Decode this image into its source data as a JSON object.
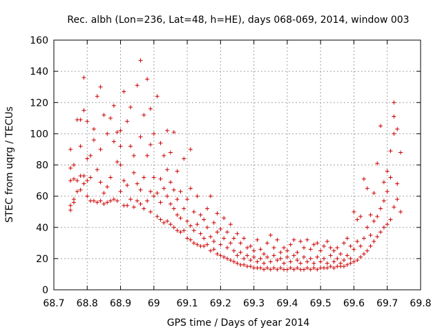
{
  "chart_data": {
    "type": "scatter",
    "title": "Rec. albh (Lon=236, Lat=48, h=HE), days 068-069, 2014, window 003",
    "xlabel": "GPS time / Days of year 2014",
    "ylabel": "STEC from uqrg / TECUs",
    "xlim": [
      68.7,
      69.8
    ],
    "ylim": [
      0,
      160
    ],
    "xticks": [
      "68.7",
      "68.8",
      "68.9",
      "69",
      "69.1",
      "69.2",
      "69.3",
      "69.4",
      "69.5",
      "69.6",
      "69.7",
      "69.8"
    ],
    "yticks": [
      "0",
      "20",
      "40",
      "60",
      "80",
      "100",
      "120",
      "140",
      "160"
    ],
    "grid": true,
    "marker": "+",
    "color": "#cc0000",
    "series": [
      {
        "points": [
          [
            68.75,
            51
          ],
          [
            68.75,
            54
          ],
          [
            68.75,
            70
          ],
          [
            68.75,
            78
          ],
          [
            68.75,
            90
          ],
          [
            68.76,
            56
          ],
          [
            68.76,
            58
          ],
          [
            68.76,
            71
          ],
          [
            68.76,
            80
          ],
          [
            68.77,
            63
          ],
          [
            68.77,
            70
          ],
          [
            68.77,
            109
          ],
          [
            68.78,
            64
          ],
          [
            68.78,
            73
          ],
          [
            68.78,
            92
          ],
          [
            68.78,
            109
          ],
          [
            68.79,
            68
          ],
          [
            68.79,
            73
          ],
          [
            68.79,
            115
          ],
          [
            68.79,
            136
          ],
          [
            68.8,
            60
          ],
          [
            68.8,
            70
          ],
          [
            68.8,
            84
          ],
          [
            68.8,
            108
          ],
          [
            68.81,
            57
          ],
          [
            68.81,
            72
          ],
          [
            68.81,
            86
          ],
          [
            68.82,
            57
          ],
          [
            68.82,
            96
          ],
          [
            68.82,
            103
          ],
          [
            68.83,
            56
          ],
          [
            68.83,
            77
          ],
          [
            68.83,
            124
          ],
          [
            68.84,
            57
          ],
          [
            68.84,
            69
          ],
          [
            68.84,
            90
          ],
          [
            68.84,
            130
          ],
          [
            68.85,
            55
          ],
          [
            68.85,
            62
          ],
          [
            68.85,
            112
          ],
          [
            68.86,
            56
          ],
          [
            68.86,
            66
          ],
          [
            68.86,
            100
          ],
          [
            68.87,
            57
          ],
          [
            68.87,
            72
          ],
          [
            68.87,
            110
          ],
          [
            68.88,
            58
          ],
          [
            68.88,
            95
          ],
          [
            68.88,
            118
          ],
          [
            68.89,
            57
          ],
          [
            68.89,
            82
          ],
          [
            68.89,
            101
          ],
          [
            68.9,
            63
          ],
          [
            68.9,
            80
          ],
          [
            68.9,
            92
          ],
          [
            68.9,
            102
          ],
          [
            68.91,
            54
          ],
          [
            68.91,
            70
          ],
          [
            68.91,
            127
          ],
          [
            68.92,
            54
          ],
          [
            68.92,
            67
          ],
          [
            68.92,
            108
          ],
          [
            68.93,
            58
          ],
          [
            68.93,
            92
          ],
          [
            68.93,
            117
          ],
          [
            68.94,
            53
          ],
          [
            68.94,
            75
          ],
          [
            68.94,
            86
          ],
          [
            68.95,
            57
          ],
          [
            68.95,
            68
          ],
          [
            68.95,
            131
          ],
          [
            68.96,
            55
          ],
          [
            68.96,
            64
          ],
          [
            68.96,
            98
          ],
          [
            68.96,
            147
          ],
          [
            68.97,
            52
          ],
          [
            68.97,
            72
          ],
          [
            68.97,
            112
          ],
          [
            68.98,
            57
          ],
          [
            68.98,
            86
          ],
          [
            68.98,
            135
          ],
          [
            68.99,
            50
          ],
          [
            68.99,
            63
          ],
          [
            68.99,
            93
          ],
          [
            68.99,
            116
          ],
          [
            69.0,
            60
          ],
          [
            69.0,
            72
          ],
          [
            69.0,
            100
          ],
          [
            69.01,
            47
          ],
          [
            69.01,
            62
          ],
          [
            69.01,
            124
          ],
          [
            69.02,
            45
          ],
          [
            69.02,
            56
          ],
          [
            69.02,
            71
          ],
          [
            69.02,
            94
          ],
          [
            69.03,
            43
          ],
          [
            69.03,
            65
          ],
          [
            69.03,
            86
          ],
          [
            69.04,
            44
          ],
          [
            69.04,
            60
          ],
          [
            69.04,
            77
          ],
          [
            69.04,
            102
          ],
          [
            69.05,
            42
          ],
          [
            69.05,
            55
          ],
          [
            69.05,
            69
          ],
          [
            69.05,
            88
          ],
          [
            69.06,
            40
          ],
          [
            69.06,
            52
          ],
          [
            69.06,
            64
          ],
          [
            69.06,
            101
          ],
          [
            69.07,
            38
          ],
          [
            69.07,
            48
          ],
          [
            69.07,
            58
          ],
          [
            69.07,
            76
          ],
          [
            69.08,
            37
          ],
          [
            69.08,
            46
          ],
          [
            69.08,
            63
          ],
          [
            69.09,
            38
          ],
          [
            69.09,
            52
          ],
          [
            69.09,
            84
          ],
          [
            69.1,
            33
          ],
          [
            69.1,
            44
          ],
          [
            69.1,
            58
          ],
          [
            69.11,
            32
          ],
          [
            69.11,
            41
          ],
          [
            69.11,
            65
          ],
          [
            69.11,
            90
          ],
          [
            69.12,
            30
          ],
          [
            69.12,
            38
          ],
          [
            69.12,
            50
          ],
          [
            69.13,
            29
          ],
          [
            69.13,
            42
          ],
          [
            69.13,
            60
          ],
          [
            69.14,
            28
          ],
          [
            69.14,
            36
          ],
          [
            69.14,
            48
          ],
          [
            69.15,
            28
          ],
          [
            69.15,
            33
          ],
          [
            69.15,
            45
          ],
          [
            69.16,
            29
          ],
          [
            69.16,
            40
          ],
          [
            69.16,
            52
          ],
          [
            69.17,
            25
          ],
          [
            69.17,
            34
          ],
          [
            69.17,
            60
          ],
          [
            69.18,
            26
          ],
          [
            69.18,
            31
          ],
          [
            69.18,
            43
          ],
          [
            69.19,
            23
          ],
          [
            69.19,
            37
          ],
          [
            69.19,
            49
          ],
          [
            69.2,
            22
          ],
          [
            69.2,
            29
          ],
          [
            69.2,
            39
          ],
          [
            69.21,
            21
          ],
          [
            69.21,
            33
          ],
          [
            69.21,
            46
          ],
          [
            69.22,
            20
          ],
          [
            69.22,
            27
          ],
          [
            69.22,
            37
          ],
          [
            69.23,
            19
          ],
          [
            69.23,
            30
          ],
          [
            69.23,
            42
          ],
          [
            69.24,
            18
          ],
          [
            69.24,
            25
          ],
          [
            69.24,
            33
          ],
          [
            69.25,
            17
          ],
          [
            69.25,
            22
          ],
          [
            69.25,
            36
          ],
          [
            69.26,
            16
          ],
          [
            69.26,
            24
          ],
          [
            69.26,
            30
          ],
          [
            69.27,
            16
          ],
          [
            69.27,
            20
          ],
          [
            69.27,
            33
          ],
          [
            69.28,
            15
          ],
          [
            69.28,
            22
          ],
          [
            69.28,
            27
          ],
          [
            69.29,
            15
          ],
          [
            69.29,
            19
          ],
          [
            69.29,
            28
          ],
          [
            69.3,
            14
          ],
          [
            69.3,
            21
          ],
          [
            69.3,
            25
          ],
          [
            69.31,
            14
          ],
          [
            69.31,
            18
          ],
          [
            69.31,
            32
          ],
          [
            69.32,
            14
          ],
          [
            69.32,
            20
          ],
          [
            69.32,
            26
          ],
          [
            69.33,
            13
          ],
          [
            69.33,
            17
          ],
          [
            69.33,
            23
          ],
          [
            69.34,
            14
          ],
          [
            69.34,
            21
          ],
          [
            69.34,
            30
          ],
          [
            69.35,
            13
          ],
          [
            69.35,
            18
          ],
          [
            69.35,
            35
          ],
          [
            69.36,
            14
          ],
          [
            69.36,
            22
          ],
          [
            69.36,
            27
          ],
          [
            69.37,
            13
          ],
          [
            69.37,
            19
          ],
          [
            69.37,
            32
          ],
          [
            69.38,
            14
          ],
          [
            69.38,
            20
          ],
          [
            69.38,
            24
          ],
          [
            69.39,
            13
          ],
          [
            69.39,
            17
          ],
          [
            69.39,
            27
          ],
          [
            69.4,
            13
          ],
          [
            69.4,
            21
          ],
          [
            69.4,
            25
          ],
          [
            69.41,
            14
          ],
          [
            69.41,
            18
          ],
          [
            69.41,
            29
          ],
          [
            69.42,
            13
          ],
          [
            69.42,
            22
          ],
          [
            69.42,
            32
          ],
          [
            69.43,
            14
          ],
          [
            69.43,
            19
          ],
          [
            69.43,
            24
          ],
          [
            69.44,
            13
          ],
          [
            69.44,
            17
          ],
          [
            69.44,
            31
          ],
          [
            69.45,
            13
          ],
          [
            69.45,
            21
          ],
          [
            69.45,
            27
          ],
          [
            69.46,
            14
          ],
          [
            69.46,
            18
          ],
          [
            69.46,
            32
          ],
          [
            69.47,
            13
          ],
          [
            69.47,
            20
          ],
          [
            69.47,
            26
          ],
          [
            69.48,
            14
          ],
          [
            69.48,
            17
          ],
          [
            69.48,
            29
          ],
          [
            69.49,
            13
          ],
          [
            69.49,
            21
          ],
          [
            69.49,
            30
          ],
          [
            69.5,
            14
          ],
          [
            69.5,
            18
          ],
          [
            69.5,
            25
          ],
          [
            69.51,
            14
          ],
          [
            69.51,
            20
          ],
          [
            69.51,
            28
          ],
          [
            69.52,
            14
          ],
          [
            69.52,
            17
          ],
          [
            69.52,
            31
          ],
          [
            69.53,
            15
          ],
          [
            69.53,
            22
          ],
          [
            69.53,
            27
          ],
          [
            69.54,
            14
          ],
          [
            69.54,
            18
          ],
          [
            69.54,
            25
          ],
          [
            69.55,
            15
          ],
          [
            69.55,
            20
          ],
          [
            69.55,
            27
          ],
          [
            69.56,
            15
          ],
          [
            69.56,
            17
          ],
          [
            69.56,
            23
          ],
          [
            69.57,
            15
          ],
          [
            69.57,
            19
          ],
          [
            69.57,
            30
          ],
          [
            69.58,
            16
          ],
          [
            69.58,
            22
          ],
          [
            69.58,
            33
          ],
          [
            69.59,
            17
          ],
          [
            69.59,
            20
          ],
          [
            69.59,
            28
          ],
          [
            69.6,
            18
          ],
          [
            69.6,
            26
          ],
          [
            69.6,
            50
          ],
          [
            69.61,
            19
          ],
          [
            69.61,
            31
          ],
          [
            69.61,
            45
          ],
          [
            69.62,
            21
          ],
          [
            69.62,
            28
          ],
          [
            69.62,
            47
          ],
          [
            69.63,
            23
          ],
          [
            69.63,
            33
          ],
          [
            69.63,
            71
          ],
          [
            69.64,
            25
          ],
          [
            69.64,
            40
          ],
          [
            69.64,
            65
          ],
          [
            69.65,
            28
          ],
          [
            69.65,
            35
          ],
          [
            69.65,
            48
          ],
          [
            69.66,
            31
          ],
          [
            69.66,
            44
          ],
          [
            69.66,
            62
          ],
          [
            69.67,
            34
          ],
          [
            69.67,
            47
          ],
          [
            69.67,
            81
          ],
          [
            69.68,
            37
          ],
          [
            69.68,
            52
          ],
          [
            69.68,
            105
          ],
          [
            69.69,
            40
          ],
          [
            69.69,
            57
          ],
          [
            69.69,
            69
          ],
          [
            69.7,
            42
          ],
          [
            69.7,
            63
          ],
          [
            69.7,
            76
          ],
          [
            69.71,
            45
          ],
          [
            69.71,
            72
          ],
          [
            69.71,
            89
          ],
          [
            69.72,
            53
          ],
          [
            69.72,
            100
          ],
          [
            69.72,
            111
          ],
          [
            69.72,
            120
          ],
          [
            69.73,
            58
          ],
          [
            69.73,
            68
          ],
          [
            69.73,
            103
          ],
          [
            69.74,
            50
          ],
          [
            69.74,
            88
          ]
        ]
      }
    ]
  }
}
